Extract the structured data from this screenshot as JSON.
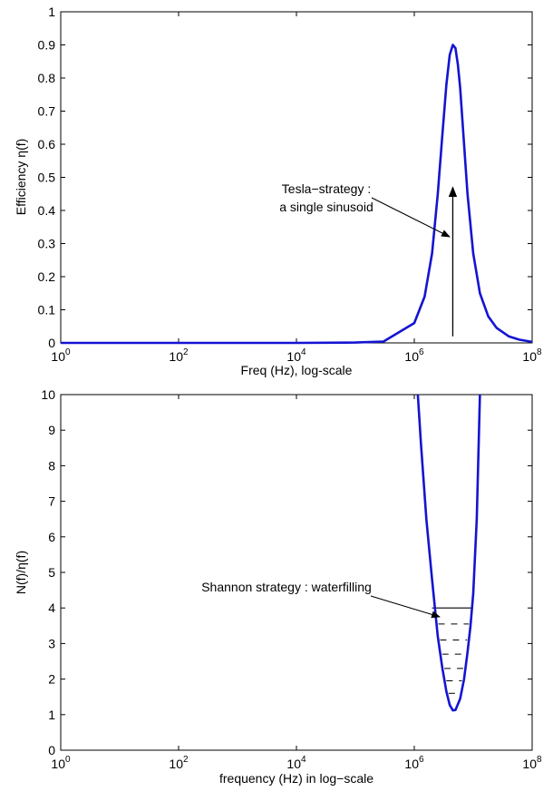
{
  "chart_data": [
    {
      "type": "line",
      "title": "",
      "xlabel": "Freq (Hz), log-scale",
      "ylabel": "Efficiency   η(f)",
      "x_scale": "log",
      "xlim": [
        1,
        100000000
      ],
      "ylim": [
        0,
        1
      ],
      "x_ticks": [
        1,
        100,
        10000,
        1000000,
        100000000
      ],
      "x_tick_labels": [
        {
          "base": "10",
          "exp": "0"
        },
        {
          "base": "10",
          "exp": "2"
        },
        {
          "base": "10",
          "exp": "4"
        },
        {
          "base": "10",
          "exp": "6"
        },
        {
          "base": "10",
          "exp": "8"
        }
      ],
      "y_ticks": [
        0,
        0.1,
        0.2,
        0.3,
        0.4,
        0.5,
        0.6,
        0.7,
        0.8,
        0.9,
        1
      ],
      "y_tick_labels": [
        "0",
        "0.1",
        "0.2",
        "0.3",
        "0.4",
        "0.5",
        "0.6",
        "0.7",
        "0.8",
        "0.9",
        "1"
      ],
      "grid": false,
      "series_color": "#1414d2",
      "series": [
        {
          "x": [
            100,
            10000,
            100000,
            300000,
            1000000,
            1500000,
            2000000,
            2500000,
            3000000,
            3500000,
            4000000,
            4500000,
            5000000,
            5500000,
            6000000,
            7000000,
            8000000,
            10000000,
            13000000,
            18000000,
            25000000,
            40000000,
            60000000,
            100000000
          ],
          "y": [
            0,
            0,
            0.001,
            0.004,
            0.06,
            0.14,
            0.27,
            0.45,
            0.63,
            0.78,
            0.87,
            0.9,
            0.89,
            0.84,
            0.77,
            0.6,
            0.45,
            0.27,
            0.15,
            0.08,
            0.045,
            0.02,
            0.01,
            0.003
          ]
        }
      ],
      "annotations": [
        {
          "lines": [
            "Tesla−strategy :",
            "a single sinusoid"
          ],
          "kind": "text-with-arrow"
        },
        {
          "kind": "impulse",
          "x": 4500000,
          "y_from": 0.02,
          "y_to": 0.47
        }
      ]
    },
    {
      "type": "line",
      "title": "",
      "xlabel": "frequency (Hz) in log−scale",
      "ylabel": "N(f)/η(f)",
      "x_scale": "log",
      "xlim": [
        1,
        100000000
      ],
      "ylim": [
        0,
        10
      ],
      "x_ticks": [
        1,
        100,
        10000,
        1000000,
        100000000
      ],
      "x_tick_labels": [
        {
          "base": "10",
          "exp": "0"
        },
        {
          "base": "10",
          "exp": "2"
        },
        {
          "base": "10",
          "exp": "4"
        },
        {
          "base": "10",
          "exp": "6"
        },
        {
          "base": "10",
          "exp": "8"
        }
      ],
      "y_ticks": [
        0,
        1,
        2,
        3,
        4,
        5,
        6,
        7,
        8,
        9,
        10
      ],
      "y_tick_labels": [
        "0",
        "1",
        "2",
        "3",
        "4",
        "5",
        "6",
        "7",
        "8",
        "9",
        "10"
      ],
      "grid": false,
      "series_color": "#1414d2",
      "series": [
        {
          "x": [
            1150000,
            1300000,
            1600000,
            2000000,
            2500000,
            3000000,
            3500000,
            4000000,
            4500000,
            5000000,
            6000000,
            7000000,
            8000000,
            9000000,
            10000000,
            11500000,
            13000000
          ],
          "y": [
            10,
            8.6,
            6.5,
            4.8,
            3.2,
            2.3,
            1.65,
            1.27,
            1.12,
            1.13,
            1.45,
            2.0,
            2.75,
            3.5,
            4.4,
            6.5,
            10
          ]
        }
      ],
      "water_level": {
        "y": 4,
        "x_from": 2000000,
        "x_to": 10000000
      },
      "water_dash_levels": [
        3.55,
        3.1,
        2.7,
        2.3,
        1.95,
        1.6
      ],
      "annotations": [
        {
          "lines": [
            "Shannon strategy : waterfilling"
          ],
          "kind": "text-with-arrow"
        }
      ]
    }
  ]
}
